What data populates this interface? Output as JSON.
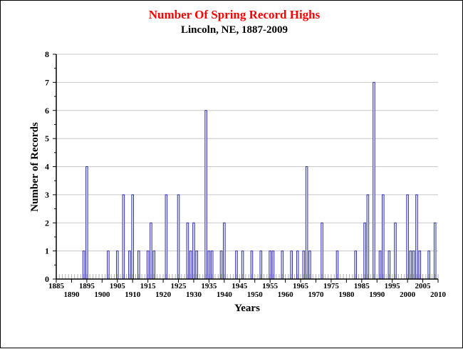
{
  "chart_data": {
    "type": "bar",
    "title": "Number Of Spring Record Highs",
    "subtitle": "Lincoln, NE, 1887-2009",
    "xlabel": "Years",
    "ylabel": "Number of Records",
    "xlim": [
      1885,
      2010
    ],
    "ylim": [
      0,
      8
    ],
    "grid": true,
    "colors": {
      "title": "#ff0000",
      "bar_fill": "#e6e6ff",
      "bar_stroke": "#3333aa",
      "grid": "#c8c8c8"
    },
    "x_tick_labels_upper": [
      "1885",
      "1895",
      "1905",
      "1915",
      "1925",
      "1935",
      "1945",
      "1955",
      "1965",
      "1975",
      "1985",
      "1995",
      "2005"
    ],
    "x_tick_labels_lower": [
      "1890",
      "1900",
      "1910",
      "1920",
      "1930",
      "1940",
      "1950",
      "1960",
      "1970",
      "1980",
      "1990",
      "2000",
      "2010"
    ],
    "y_tick_labels": [
      "0",
      "1",
      "2",
      "3",
      "4",
      "5",
      "6",
      "7",
      "8"
    ],
    "series": [
      {
        "x": [
          1894,
          1895,
          1902,
          1905,
          1907,
          1909,
          1910,
          1912,
          1915,
          1916,
          1917,
          1921,
          1925,
          1928,
          1929,
          1930,
          1931,
          1934,
          1935,
          1936,
          1939,
          1940,
          1944,
          1946,
          1949,
          1952,
          1955,
          1956,
          1959,
          1962,
          1964,
          1966,
          1967,
          1968,
          1972,
          1977,
          1983,
          1986,
          1987,
          1989,
          1991,
          1992,
          1994,
          1996,
          2000,
          2001,
          2002,
          2003,
          2004,
          2007,
          2009
        ],
        "values": [
          1,
          4,
          1,
          1,
          3,
          1,
          3,
          1,
          1,
          2,
          1,
          3,
          3,
          2,
          1,
          2,
          1,
          6,
          1,
          1,
          1,
          2,
          1,
          1,
          1,
          1,
          1,
          1,
          1,
          1,
          1,
          1,
          4,
          1,
          2,
          1,
          1,
          2,
          3,
          7,
          1,
          3,
          1,
          2,
          3,
          1,
          1,
          3,
          1,
          1,
          2
        ]
      }
    ]
  }
}
